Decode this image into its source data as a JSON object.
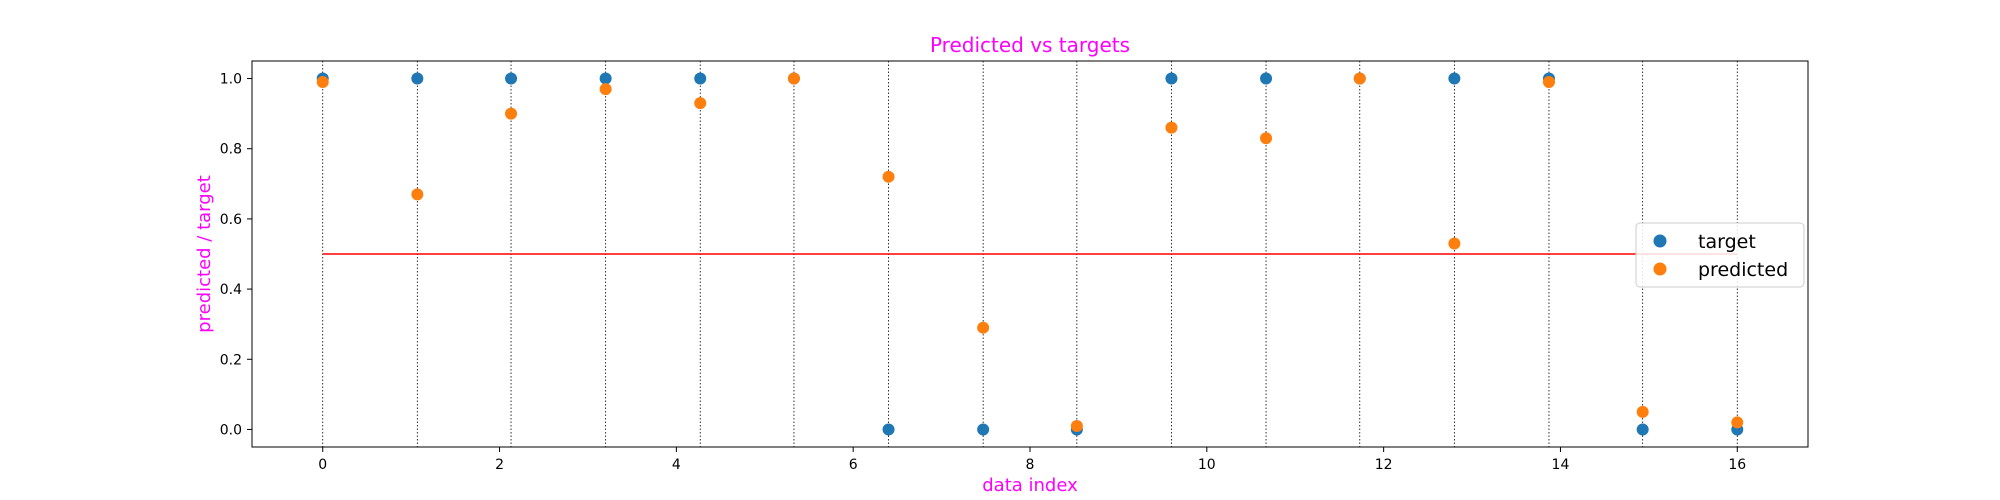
{
  "chart_data": {
    "type": "scatter",
    "title": "Predicted vs targets",
    "xlabel": "data index",
    "ylabel": "predicted / target",
    "xlim": [
      -0.8,
      16.8
    ],
    "ylim": [
      -0.05,
      1.05
    ],
    "xticks": [
      0,
      2,
      4,
      6,
      8,
      10,
      12,
      14,
      16
    ],
    "yticks": [
      0.0,
      0.2,
      0.4,
      0.6,
      0.8,
      1.0
    ],
    "x": [
      0,
      1.07,
      2.13,
      3.2,
      4.27,
      5.33,
      6.4,
      7.47,
      8.53,
      9.6,
      10.67,
      11.73,
      12.8,
      13.87,
      14.93,
      16.0
    ],
    "series": [
      {
        "name": "target",
        "color": "#1f77b4",
        "values": [
          1,
          1,
          1,
          1,
          1,
          1,
          0,
          0,
          0,
          1,
          1,
          1,
          1,
          1,
          0,
          0
        ]
      },
      {
        "name": "predicted",
        "color": "#ff7f0e",
        "values": [
          0.99,
          0.67,
          0.9,
          0.97,
          0.93,
          1.0,
          0.72,
          0.29,
          0.01,
          0.86,
          0.83,
          1.0,
          0.53,
          0.99,
          0.05,
          0.02
        ]
      }
    ],
    "threshold": {
      "y": 0.5,
      "color": "#ff0000"
    },
    "vlines": "dotted at each data index",
    "grid": false,
    "legend_position": "center-right",
    "text_color": "#ff00ff"
  }
}
